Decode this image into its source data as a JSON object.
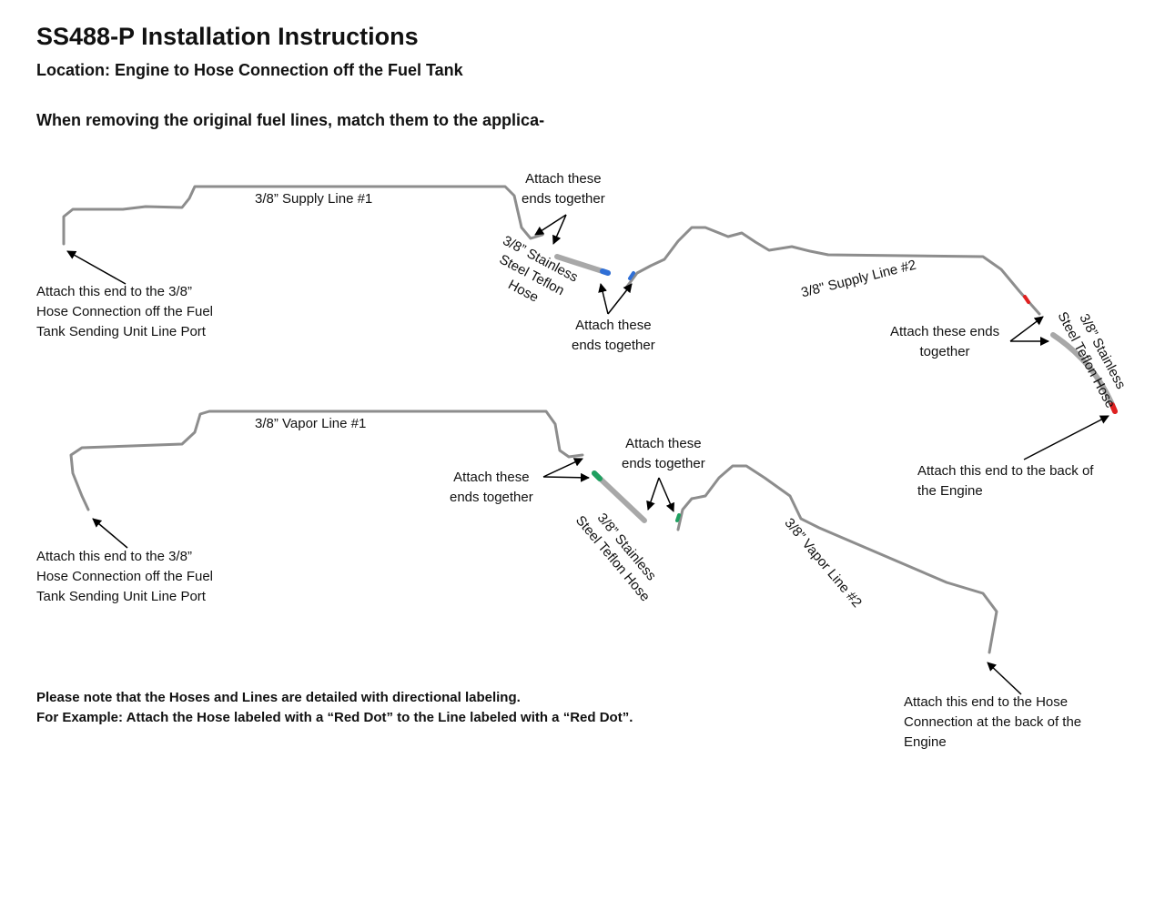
{
  "header": {
    "title": "SS488-P Installation Instructions",
    "location": "Location: Engine to Hose Connection off the Fuel Tank",
    "intro": "When removing the original fuel lines, match them to the applica-"
  },
  "labels": {
    "supply_line_1": "3/8” Supply Line #1",
    "supply_line_2": "3/8\" Supply Line #2",
    "vapor_line_1": "3/8” Vapor Line #1",
    "vapor_line_2": "3/8” Vapor Line #2",
    "hose_1": [
      "3/8” Stainless",
      "Steel Teflon",
      "Hose"
    ],
    "hose_2": [
      "3/8” Stainless",
      "Steel Teflon Hose"
    ],
    "hose_3": [
      "3/8” Stainless",
      "Steel Teflon Hose"
    ],
    "attach_a": [
      "Attach these",
      "ends together"
    ],
    "attach_b": [
      "Attach these",
      "ends together"
    ],
    "attach_c": [
      "Attach these ends",
      "together"
    ],
    "attach_d": [
      "Attach these",
      "ends together"
    ],
    "attach_e": [
      "Attach these",
      "ends together"
    ],
    "tank_supply": [
      "Attach this end to the 3/8”",
      "Hose Connection off the Fuel",
      "Tank Sending Unit Line Port"
    ],
    "tank_vapor": [
      "Attach this end to the 3/8”",
      "Hose Connection off the Fuel",
      "Tank Sending Unit Line Port"
    ],
    "engine_supply": [
      "Attach this end to the back of",
      "the Engine"
    ],
    "engine_vapor": [
      "Attach this end to the Hose",
      "Connection at the back of the",
      "Engine"
    ]
  },
  "footer": {
    "note_1": "Please note that the Hoses and Lines are detailed with directional labeling.",
    "note_2": "For Example: Attach the Hose labeled with a “Red Dot” to the Line labeled with a “Red Dot”."
  },
  "colors": {
    "line": "#9a9a9a",
    "blue_marker": "#2f6fd6",
    "red_marker": "#e02020",
    "green_marker": "#1fa060"
  }
}
